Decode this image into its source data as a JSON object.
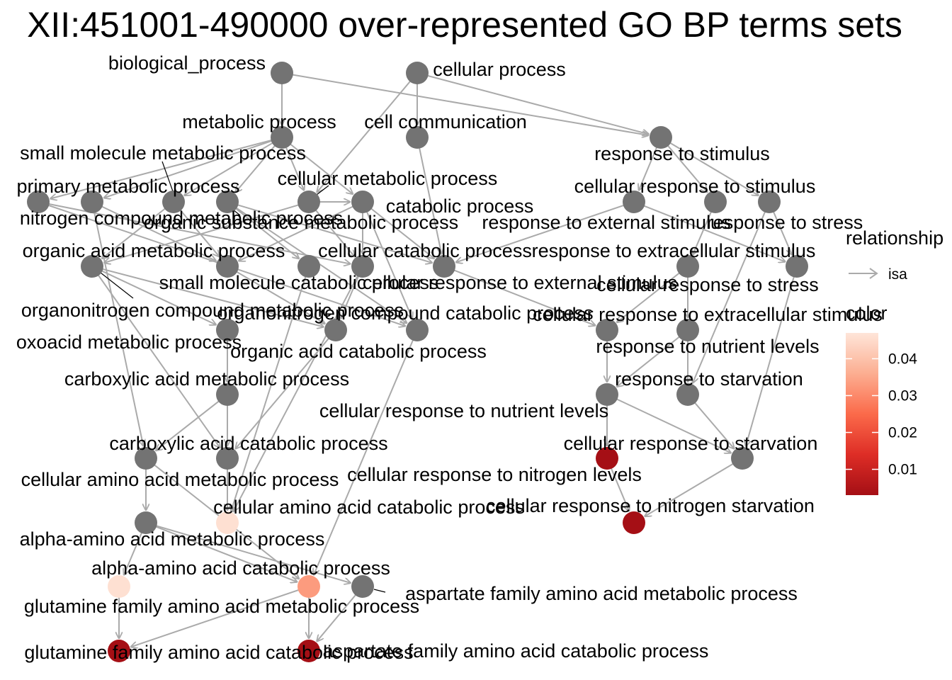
{
  "title": "XII:451001-490000 over-represented GO BP terms sets",
  "colors": {
    "node_default": "#737373",
    "edge": "#aaaaaa",
    "leader": "#000000",
    "scale": [
      "#a50f15",
      "#de2d26",
      "#fb6a4a",
      "#fcae91",
      "#fee5d9"
    ]
  },
  "legend": {
    "relationship_title": "relationship",
    "relationship_items": [
      {
        "label": "isa",
        "icon": "arrow-right-icon"
      }
    ],
    "color_title": "color",
    "color_range": [
      0.003,
      0.047
    ],
    "color_ticks": [
      "0.04",
      "0.03",
      "0.02",
      "0.01"
    ]
  },
  "nodes": [
    {
      "id": "biological_process",
      "label": "biological_process"
    },
    {
      "id": "cellular_process",
      "label": "cellular process"
    },
    {
      "id": "metabolic_process",
      "label": "metabolic process"
    },
    {
      "id": "cell_communication",
      "label": "cell communication"
    },
    {
      "id": "response_to_stimulus",
      "label": "response to stimulus"
    },
    {
      "id": "small_molecule_metabolic_process",
      "label": "small molecule metabolic process"
    },
    {
      "id": "primary_metabolic_process",
      "label": "primary metabolic process"
    },
    {
      "id": "cellular_metabolic_process",
      "label": "cellular metabolic process"
    },
    {
      "id": "cellular_response_to_stimulus",
      "label": "cellular response to stimulus"
    },
    {
      "id": "catabolic_process",
      "label": "catabolic process"
    },
    {
      "id": "nitrogen_compound_metabolic_process",
      "label": "nitrogen compound metabolic process"
    },
    {
      "id": "organic_substance_metabolic_process",
      "label": "organic substance metabolic process"
    },
    {
      "id": "response_to_external_stimulus",
      "label": "response to external stimulus"
    },
    {
      "id": "response_to_stress",
      "label": "response to stress"
    },
    {
      "id": "organic_acid_metabolic_process",
      "label": "organic acid metabolic process"
    },
    {
      "id": "cellular_catabolic_process",
      "label": "cellular catabolic process"
    },
    {
      "id": "response_to_extracellular_stimulus",
      "label": "response to extracellular stimulus"
    },
    {
      "id": "small_molecule_catabolic_process",
      "label": "small molecule catabolic process"
    },
    {
      "id": "cellular_response_to_external_stimulus",
      "label": "cellular response to external stimulus"
    },
    {
      "id": "cellular_response_to_stress",
      "label": "cellular response to stress"
    },
    {
      "id": "organonitrogen_compound_metabolic_process",
      "label": "organonitrogen compound metabolic process"
    },
    {
      "id": "organonitrogen_compound_catabolic_process",
      "label": "organonitrogen compound catabolic process"
    },
    {
      "id": "cellular_response_to_extracellular_stimulus",
      "label": "cellular response to extracellular stimulus"
    },
    {
      "id": "oxoacid_metabolic_process",
      "label": "oxoacid metabolic process"
    },
    {
      "id": "response_to_nutrient_levels",
      "label": "response to nutrient levels"
    },
    {
      "id": "organic_acid_catabolic_process",
      "label": "organic acid catabolic process"
    },
    {
      "id": "carboxylic_acid_metabolic_process",
      "label": "carboxylic acid metabolic process"
    },
    {
      "id": "response_to_starvation",
      "label": "response to starvation"
    },
    {
      "id": "cellular_response_to_nutrient_levels",
      "label": "cellular response to nutrient levels"
    },
    {
      "id": "carboxylic_acid_catabolic_process",
      "label": "carboxylic acid catabolic process"
    },
    {
      "id": "cellular_response_to_starvation",
      "label": "cellular response to starvation"
    },
    {
      "id": "cellular_amino_acid_metabolic_process",
      "label": "cellular amino acid metabolic process"
    },
    {
      "id": "cellular_response_to_nitrogen_levels",
      "label": "cellular response to nitrogen levels",
      "value": 0.003
    },
    {
      "id": "cellular_amino_acid_catabolic_process",
      "label": "cellular amino acid catabolic process",
      "value": 0.046
    },
    {
      "id": "cellular_response_to_nitrogen_starvation",
      "label": "cellular response to nitrogen starvation",
      "value": 0.003
    },
    {
      "id": "alpha_amino_acid_metabolic_process",
      "label": "alpha-amino acid metabolic process"
    },
    {
      "id": "alpha_amino_acid_catabolic_process",
      "label": "alpha-amino acid catabolic process",
      "value": 0.033
    },
    {
      "id": "aspartate_family_amino_acid_metabolic_process",
      "label": "aspartate family amino acid metabolic process"
    },
    {
      "id": "glutamine_family_amino_acid_metabolic_process",
      "label": "glutamine family amino acid metabolic process",
      "value": 0.046
    },
    {
      "id": "glutamine_family_amino_acid_catabolic_process",
      "label": "glutamine family amino acid catabolic process",
      "value": 0.003
    },
    {
      "id": "aspartate_family_amino_acid_catabolic_process",
      "label": "aspartate family amino acid catabolic process",
      "value": 0.003
    }
  ],
  "edges": [
    [
      "biological_process",
      "metabolic_process"
    ],
    [
      "biological_process",
      "response_to_stimulus"
    ],
    [
      "cellular_process",
      "cell_communication"
    ],
    [
      "cellular_process",
      "cellular_metabolic_process"
    ],
    [
      "cellular_process",
      "response_to_stimulus"
    ],
    [
      "metabolic_process",
      "small_molecule_metabolic_process"
    ],
    [
      "metabolic_process",
      "primary_metabolic_process"
    ],
    [
      "metabolic_process",
      "nitrogen_compound_metabolic_process"
    ],
    [
      "metabolic_process",
      "organic_substance_metabolic_process"
    ],
    [
      "metabolic_process",
      "cellular_metabolic_process"
    ],
    [
      "metabolic_process",
      "catabolic_process"
    ],
    [
      "cell_communication",
      "cellular_response_to_external_stimulus"
    ],
    [
      "response_to_stimulus",
      "cellular_response_to_stimulus"
    ],
    [
      "response_to_stimulus",
      "response_to_external_stimulus"
    ],
    [
      "response_to_stimulus",
      "response_to_stress"
    ],
    [
      "cellular_response_to_stimulus",
      "cellular_response_to_external_stimulus"
    ],
    [
      "cellular_response_to_stimulus",
      "cellular_response_to_stress"
    ],
    [
      "response_to_external_stimulus",
      "response_to_extracellular_stimulus"
    ],
    [
      "response_to_stress",
      "response_to_starvation"
    ],
    [
      "response_to_stress",
      "cellular_response_to_stress"
    ],
    [
      "primary_metabolic_process",
      "cellular_amino_acid_metabolic_process"
    ],
    [
      "primary_metabolic_process",
      "small_molecule_catabolic_process"
    ],
    [
      "organic_substance_metabolic_process",
      "organonitrogen_compound_metabolic_process"
    ],
    [
      "organic_substance_metabolic_process",
      "organonitrogen_compound_catabolic_process"
    ],
    [
      "organic_substance_metabolic_process",
      "cellular_response_to_external_stimulus"
    ],
    [
      "nitrogen_compound_metabolic_process",
      "organonitrogen_compound_catabolic_process"
    ],
    [
      "nitrogen_compound_metabolic_process",
      "cellular_catabolic_process"
    ],
    [
      "cellular_metabolic_process",
      "organic_acid_metabolic_process"
    ],
    [
      "cellular_metabolic_process",
      "cellular_catabolic_process"
    ],
    [
      "cellular_metabolic_process",
      "catabolic_process"
    ],
    [
      "catabolic_process",
      "small_molecule_catabolic_process"
    ],
    [
      "catabolic_process",
      "cellular_catabolic_process"
    ],
    [
      "catabolic_process",
      "organonitrogen_compound_catabolic_process"
    ],
    [
      "catabolic_process",
      "cellular_response_to_external_stimulus"
    ],
    [
      "small_molecule_metabolic_process",
      "organic_acid_metabolic_process"
    ],
    [
      "small_molecule_metabolic_process",
      "small_molecule_catabolic_process"
    ],
    [
      "organic_acid_metabolic_process",
      "oxoacid_metabolic_process"
    ],
    [
      "organic_acid_metabolic_process",
      "organic_acid_catabolic_process"
    ],
    [
      "organic_acid_metabolic_process",
      "carboxylic_acid_catabolic_process"
    ],
    [
      "small_molecule_catabolic_process",
      "organic_acid_catabolic_process"
    ],
    [
      "cellular_catabolic_process",
      "organic_acid_catabolic_process"
    ],
    [
      "cellular_catabolic_process",
      "cellular_amino_acid_catabolic_process"
    ],
    [
      "organonitrogen_compound_metabolic_process",
      "cellular_amino_acid_catabolic_process"
    ],
    [
      "organonitrogen_compound_catabolic_process",
      "alpha_amino_acid_catabolic_process"
    ],
    [
      "oxoacid_metabolic_process",
      "carboxylic_acid_metabolic_process"
    ],
    [
      "organic_acid_catabolic_process",
      "carboxylic_acid_catabolic_process"
    ],
    [
      "carboxylic_acid_metabolic_process",
      "cellular_amino_acid_metabolic_process"
    ],
    [
      "carboxylic_acid_metabolic_process",
      "carboxylic_acid_catabolic_process"
    ],
    [
      "carboxylic_acid_catabolic_process",
      "cellular_amino_acid_catabolic_process"
    ],
    [
      "cellular_amino_acid_metabolic_process",
      "alpha_amino_acid_metabolic_process"
    ],
    [
      "cellular_amino_acid_metabolic_process",
      "alpha_amino_acid_catabolic_process"
    ],
    [
      "alpha_amino_acid_metabolic_process",
      "glutamine_family_amino_acid_metabolic_process"
    ],
    [
      "alpha_amino_acid_metabolic_process",
      "aspartate_family_amino_acid_metabolic_process"
    ],
    [
      "alpha_amino_acid_metabolic_process",
      "alpha_amino_acid_catabolic_process"
    ],
    [
      "alpha_amino_acid_catabolic_process",
      "glutamine_family_amino_acid_catabolic_process"
    ],
    [
      "alpha_amino_acid_catabolic_process",
      "aspartate_family_amino_acid_catabolic_process"
    ],
    [
      "glutamine_family_amino_acid_metabolic_process",
      "glutamine_family_amino_acid_catabolic_process"
    ],
    [
      "aspartate_family_amino_acid_metabolic_process",
      "aspartate_family_amino_acid_catabolic_process"
    ],
    [
      "cellular_response_to_external_stimulus",
      "cellular_response_to_extracellular_stimulus"
    ],
    [
      "response_to_extracellular_stimulus",
      "response_to_nutrient_levels"
    ],
    [
      "response_to_extracellular_stimulus",
      "cellular_response_to_extracellular_stimulus"
    ],
    [
      "cellular_response_to_stress",
      "cellular_response_to_starvation"
    ],
    [
      "cellular_response_to_extracellular_stimulus",
      "cellular_response_to_nutrient_levels"
    ],
    [
      "response_to_nutrient_levels",
      "response_to_starvation"
    ],
    [
      "response_to_nutrient_levels",
      "cellular_response_to_nutrient_levels"
    ],
    [
      "cellular_response_to_nutrient_levels",
      "cellular_response_to_nitrogen_levels"
    ],
    [
      "cellular_response_to_nutrient_levels",
      "cellular_response_to_starvation"
    ],
    [
      "response_to_starvation",
      "cellular_response_to_starvation"
    ],
    [
      "cellular_response_to_starvation",
      "cellular_response_to_nitrogen_starvation"
    ],
    [
      "cellular_response_to_nitrogen_levels",
      "cellular_response_to_nitrogen_starvation"
    ]
  ]
}
